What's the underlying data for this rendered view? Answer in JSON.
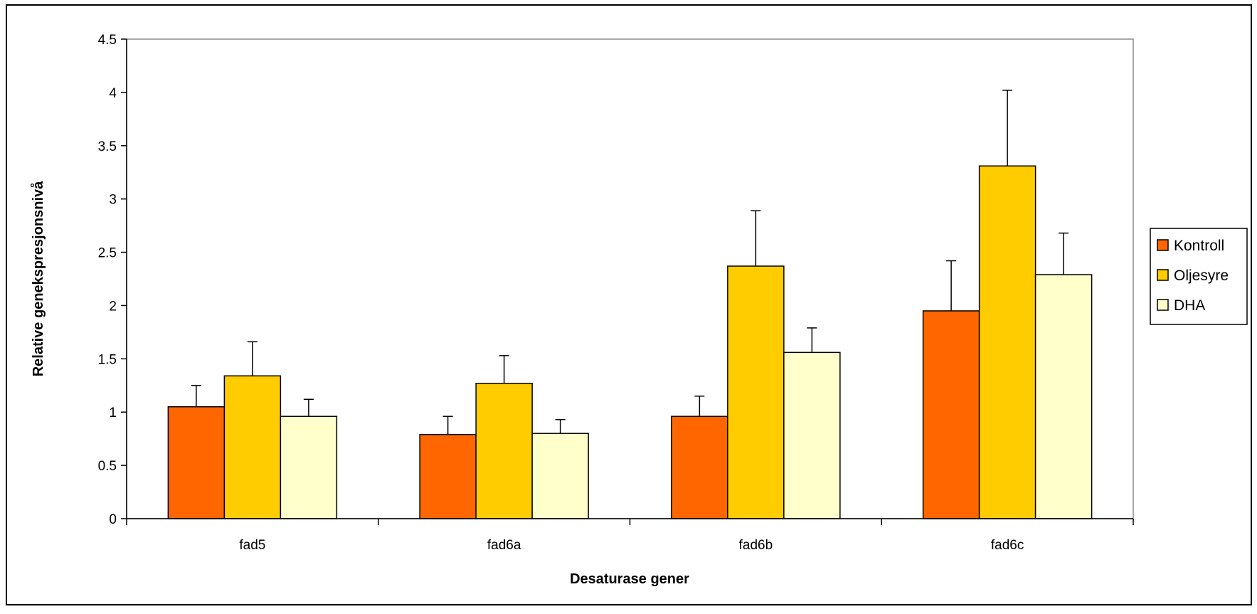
{
  "chart_data": {
    "type": "bar",
    "title": "",
    "xlabel": "Desaturase gener",
    "ylabel": "Relative genekspresjonsnivå",
    "ylim": [
      0,
      4.5
    ],
    "yticks": [
      "0",
      "0.5",
      "1",
      "1.5",
      "2",
      "2.5",
      "3",
      "3.5",
      "4",
      "4.5"
    ],
    "categories": [
      "fad5",
      "fad6a",
      "fad6b",
      "fad6c"
    ],
    "series": [
      {
        "name": "Kontroll",
        "color": "#FF6600",
        "values": [
          1.05,
          0.79,
          0.96,
          1.95
        ],
        "errors": [
          0.2,
          0.17,
          0.19,
          0.47
        ]
      },
      {
        "name": "Oljesyre",
        "color": "#FFCC00",
        "values": [
          1.34,
          1.27,
          2.37,
          3.31
        ],
        "errors": [
          0.32,
          0.26,
          0.52,
          0.71
        ]
      },
      {
        "name": "DHA",
        "color": "#FFFFCC",
        "values": [
          0.96,
          0.8,
          1.56,
          2.29
        ],
        "errors": [
          0.16,
          0.13,
          0.23,
          0.39
        ]
      }
    ],
    "grid": false,
    "legend_position": "right"
  }
}
